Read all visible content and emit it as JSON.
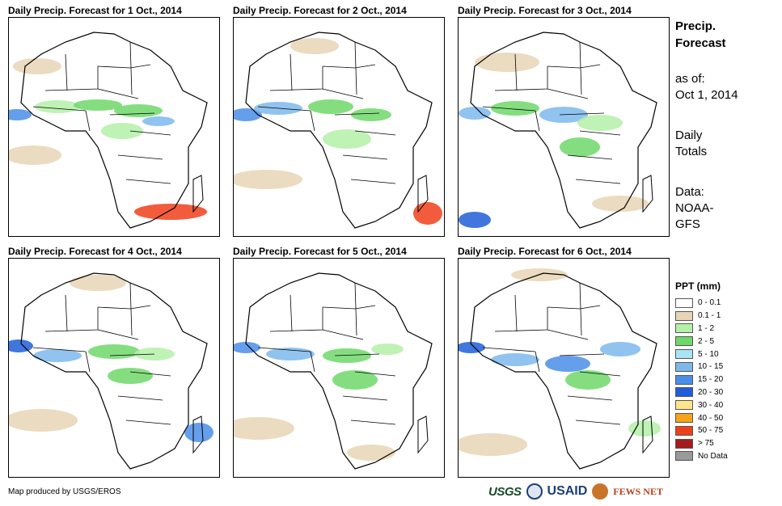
{
  "panels": [
    {
      "title": "Daily Precip. Forecast for 1 Oct., 2014"
    },
    {
      "title": "Daily Precip. Forecast for 2 Oct., 2014"
    },
    {
      "title": "Daily Precip. Forecast for 3 Oct., 2014"
    },
    {
      "title": "Daily Precip. Forecast for 4 Oct., 2014"
    },
    {
      "title": "Daily Precip. Forecast for 5 Oct., 2014"
    },
    {
      "title": "Daily Precip. Forecast for 6 Oct., 2014"
    }
  ],
  "sidebar": {
    "heading_line1": "Precip.",
    "heading_line2": "Forecast",
    "asof_line1": "as of:",
    "asof_line2": "Oct 1, 2014",
    "daily_line1": "Daily",
    "daily_line2": "Totals",
    "data_line1": "Data:",
    "data_line2": "NOAA-",
    "data_line3": "GFS"
  },
  "legend": {
    "title": "PPT (mm)",
    "items": [
      {
        "label": "0 - 0.1",
        "color": "#ffffff"
      },
      {
        "label": "0.1 - 1",
        "color": "#e8d5b5"
      },
      {
        "label": "1 - 2",
        "color": "#b4f0a8"
      },
      {
        "label": "2 - 5",
        "color": "#6ed86a"
      },
      {
        "label": "5 - 10",
        "color": "#a8e4f4"
      },
      {
        "label": "10 - 15",
        "color": "#7cb8ec"
      },
      {
        "label": "15 - 20",
        "color": "#4a8ee8"
      },
      {
        "label": "20 - 30",
        "color": "#1f5ed8"
      },
      {
        "label": "30 - 40",
        "color": "#fde58a"
      },
      {
        "label": "40 - 50",
        "color": "#f7a41c"
      },
      {
        "label": "50 - 75",
        "color": "#f0401a"
      },
      {
        "label": "> 75",
        "color": "#a41c1c"
      },
      {
        "label": "No Data",
        "color": "#999999"
      }
    ]
  },
  "footer": {
    "credit": "Map produced by USGS/EROS",
    "logo_usgs": "USGS",
    "logo_usaid": "USAID",
    "logo_fews": "FEWS NET"
  }
}
